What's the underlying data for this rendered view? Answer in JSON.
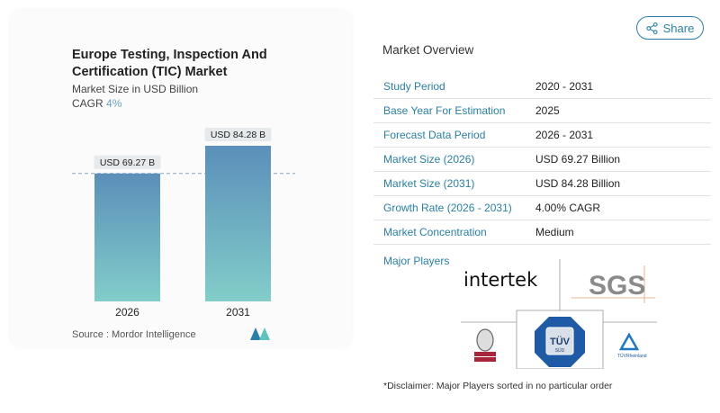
{
  "header": {
    "share_label": "Share",
    "share_icon": "share-icon"
  },
  "chart_card": {
    "title": "Europe Testing, Inspection And Certification (TIC) Market",
    "subtitle": "Market Size in USD Billion",
    "cagr_label": "CAGR",
    "cagr_value": "4%",
    "source": "Source :  Mordor Intelligence"
  },
  "chart_data": {
    "type": "bar",
    "title": "Europe Testing, Inspection And Certification (TIC) Market",
    "ylabel": "Market Size in USD Billion",
    "categories": [
      "2026",
      "2031"
    ],
    "values": [
      69.27,
      84.28
    ],
    "data_labels": [
      "USD 69.27 B",
      "USD 84.28 B"
    ],
    "colors": {
      "top": "#5b8fba",
      "bottom": "#82cdc9"
    },
    "reference_line": 69.27,
    "grid": false
  },
  "overview": {
    "title": "Market Overview",
    "rows": [
      {
        "key": "Study Period",
        "value": "2020 - 2031"
      },
      {
        "key": "Base Year For Estimation",
        "value": "2025"
      },
      {
        "key": "Forecast Data Period",
        "value": "2026 - 2031"
      },
      {
        "key": "Market Size (2026)",
        "value": "USD 69.27 Billion"
      },
      {
        "key": "Market Size (2031)",
        "value": "USD 84.28 Billion"
      },
      {
        "key": "Growth Rate (2026 - 2031)",
        "value": "4.00% CAGR"
      },
      {
        "key": "Market Concentration",
        "value": "Medium"
      }
    ],
    "major_players_label": "Major Players",
    "players": [
      "intertek",
      "SGS",
      "Bureau Veritas",
      "TÜV SÜD",
      "TÜV Rheinland"
    ],
    "disclaimer": "*Disclaimer: Major Players sorted in no particular order"
  }
}
